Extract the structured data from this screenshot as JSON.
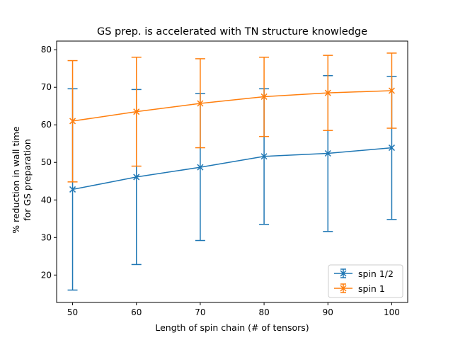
{
  "chart_data": {
    "type": "line",
    "title": "GS prep. is accelerated with TN structure knowledge",
    "xlabel": "Length of spin chain (# of tensors)",
    "ylabel": [
      "% reduction in wall time",
      "for GS preparation"
    ],
    "x": [
      50,
      60,
      70,
      80,
      90,
      100
    ],
    "xticks": [
      50,
      60,
      70,
      80,
      90,
      100
    ],
    "yticks": [
      20,
      30,
      40,
      50,
      60,
      70,
      80
    ],
    "xlim": [
      47.5,
      102.5
    ],
    "ylim": [
      12.7,
      82.3
    ],
    "grid": false,
    "legend_position": "lower-right",
    "series": [
      {
        "name": "spin 1/2",
        "color": "#1f77b4",
        "marker": "x",
        "values": [
          42.8,
          46.1,
          48.7,
          51.6,
          52.4,
          53.9
        ],
        "err_low": [
          16.0,
          22.8,
          29.2,
          33.5,
          31.6,
          34.8
        ],
        "err_high": [
          69.6,
          69.4,
          68.3,
          69.6,
          73.1,
          72.9
        ]
      },
      {
        "name": "spin 1",
        "color": "#ff7f0e",
        "marker": "x",
        "values": [
          61.0,
          63.5,
          65.7,
          67.5,
          68.5,
          69.1
        ],
        "err_low": [
          44.8,
          49.0,
          53.9,
          56.9,
          58.5,
          59.1
        ],
        "err_high": [
          77.1,
          78.0,
          77.6,
          78.0,
          78.5,
          79.1
        ]
      }
    ]
  }
}
